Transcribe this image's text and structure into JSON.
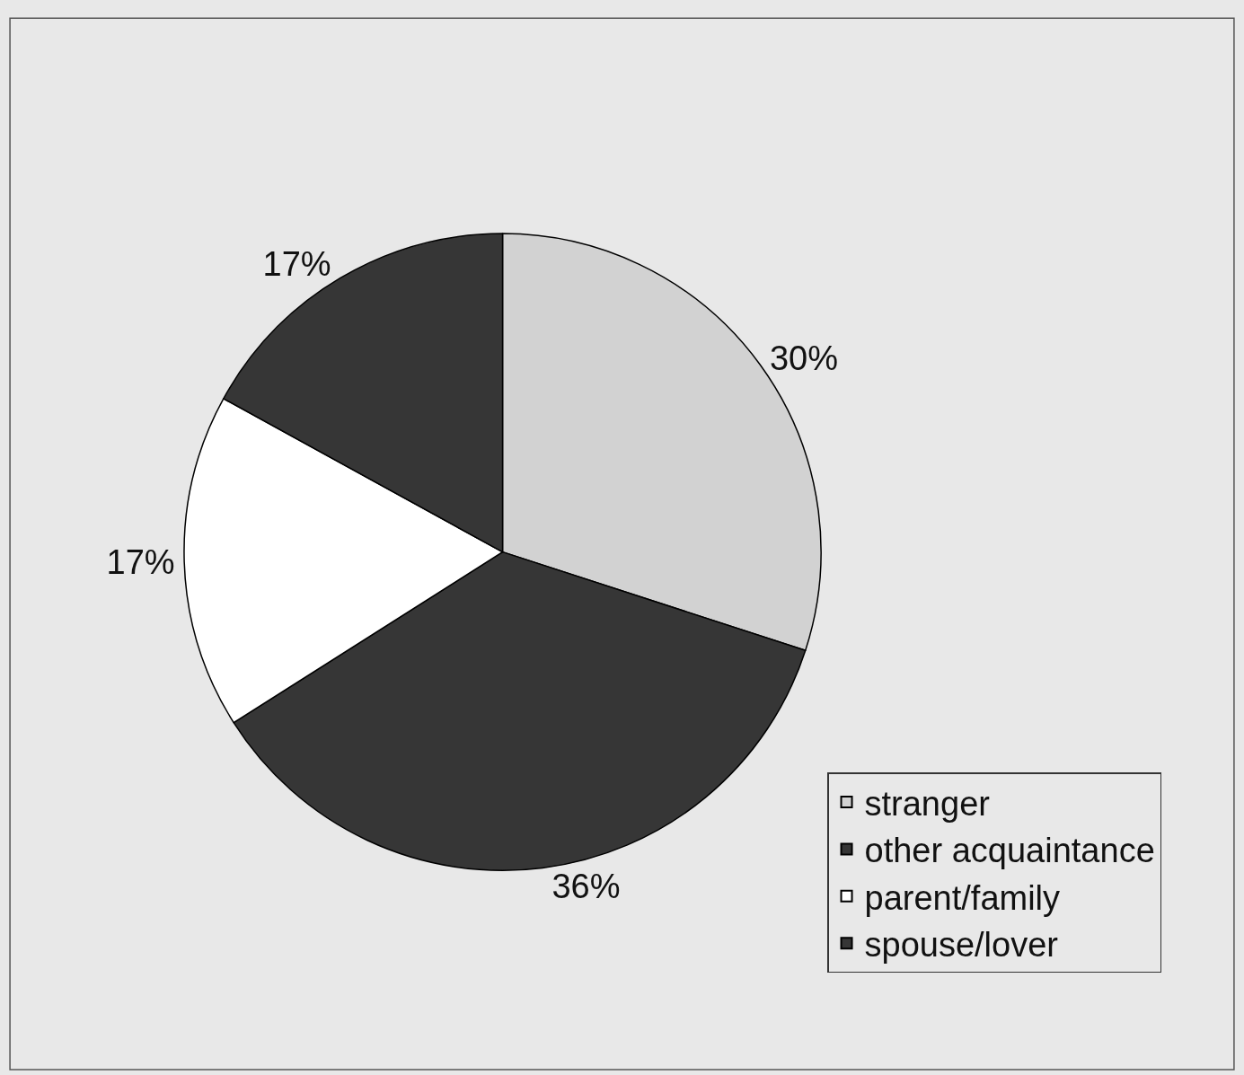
{
  "chart_data": {
    "type": "pie",
    "categories": [
      "stranger",
      "other acquaintance",
      "parent/family",
      "spouse/lover"
    ],
    "values": [
      30,
      36,
      17,
      17
    ],
    "value_labels": [
      "30%",
      "36%",
      "17%",
      "17%"
    ],
    "colors": [
      "#d2d2d2",
      "#363636",
      "#ffffff",
      "#363636"
    ],
    "legend": "bottom right"
  }
}
